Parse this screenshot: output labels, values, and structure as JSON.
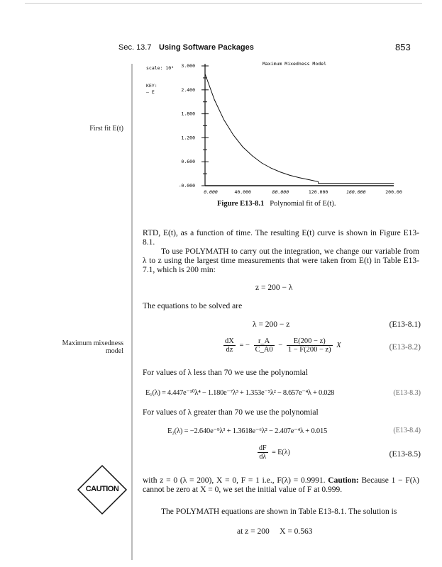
{
  "header": {
    "section": "Sec. 13.7",
    "title": "Using Software Packages",
    "page": "853"
  },
  "margin_notes": [
    "First fit E(t)",
    "Maximum mixedness model"
  ],
  "chart_data": {
    "type": "line",
    "title": "Maximum Mixedness Model",
    "scale_label": "scale: 10²",
    "legend_title": "KEY:",
    "legend": "— E",
    "xlim": [
      0,
      200
    ],
    "ylim": [
      0,
      3
    ],
    "x_ticks": [
      "0.000",
      "40.000",
      "80.000",
      "120.000",
      "160.000",
      "200.00"
    ],
    "y_ticks": [
      "-0.000",
      "0.600",
      "1.200",
      "1.800",
      "2.400",
      "3.000"
    ],
    "series": [
      {
        "name": "E",
        "x": [
          0,
          10,
          20,
          30,
          40,
          50,
          60,
          70,
          80,
          90,
          100,
          110,
          120,
          120,
          200
        ],
        "y": [
          2.8,
          2.15,
          1.65,
          1.27,
          0.97,
          0.75,
          0.57,
          0.44,
          0.34,
          0.26,
          0.2,
          0.15,
          0.1,
          0.06,
          0.06
        ]
      }
    ]
  },
  "figure_caption": {
    "label": "Figure E13-8.1",
    "text": "Polynomial fit of E(t)."
  },
  "para1": "RTD, E(t), as a function of time. The resulting E(t) curve is shown in Figure E13-8.1.",
  "para2": "To use POLYMATH to carry out the integration, we change our variable from λ to z using the largest time measurements that were taken from E(t) in Table E13-7.1, which is 200 min:",
  "eq_z": "z = 200 − λ",
  "para3": "The equations to be solved are",
  "eq1": {
    "text": "λ = 200 − z",
    "num": "(E13-8.1)"
  },
  "eq2": {
    "lhs_num": "dX",
    "lhs_den": "dz",
    "t1_num": "r_A",
    "t1_den": "C_A0",
    "t2_num": "E(200 − z)",
    "t2_den": "1 − F(200 − z)",
    "tail": "X",
    "num": "(E13-8.2)"
  },
  "para4": "For values of λ less than 70 we use the polynomial",
  "eq3": {
    "text": "E₁(λ) = 4.447e⁻¹⁰λ⁴ − 1.180e⁻⁷λ³ + 1.353e⁻⁵λ² − 8.657e⁻⁴λ + 0.028",
    "num": "(E13-8.3)"
  },
  "para5": "For values of λ greater than 70 we use the polynomial",
  "eq4": {
    "text": "E₂(λ) = −2.640e⁻⁹λ³ + 1.3618e⁻⁶λ² − 2.407e⁻⁴λ + 0.015",
    "num": "(E13-8.4)"
  },
  "eq5": {
    "num_t": "dF",
    "den_t": "dλ",
    "rhs": "= E(λ)",
    "num": "(E13-8.5)"
  },
  "para6a": "with z = 0 (λ = 200), X = 0, F = 1 i.e., F(λ) = 0.9991. ",
  "para6b": "Caution:",
  "para6c": " Because 1 − F(λ) cannot be zero at X = 0, we set the initial value of F at 0.999.",
  "para7": "The POLYMATH equations are shown in Table E13-8.1. The solution is",
  "solution": "at z = 200     X = 0.563",
  "caution_icon": "CAUTION"
}
